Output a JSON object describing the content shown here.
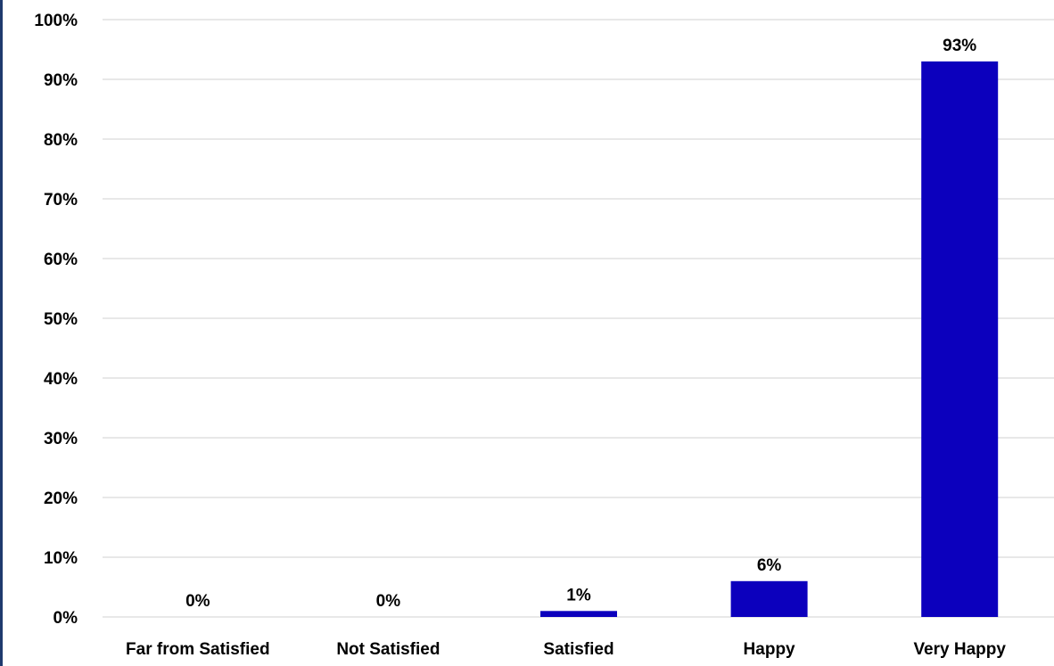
{
  "chart_data": {
    "type": "bar",
    "categories": [
      "Far from Satisfied",
      "Not Satisfied",
      "Satisfied",
      "Happy",
      "Very Happy"
    ],
    "values": [
      0,
      0,
      1,
      6,
      93
    ],
    "data_labels": [
      "0%",
      "0%",
      "1%",
      "6%",
      "93%"
    ],
    "title": "",
    "xlabel": "",
    "ylabel": "",
    "ylim": [
      0,
      100
    ],
    "y_ticks": [
      "0%",
      "10%",
      "20%",
      "30%",
      "40%",
      "50%",
      "60%",
      "70%",
      "80%",
      "90%",
      "100%"
    ],
    "grid": true,
    "legend": "none",
    "bar_color": "#0c00bd"
  }
}
